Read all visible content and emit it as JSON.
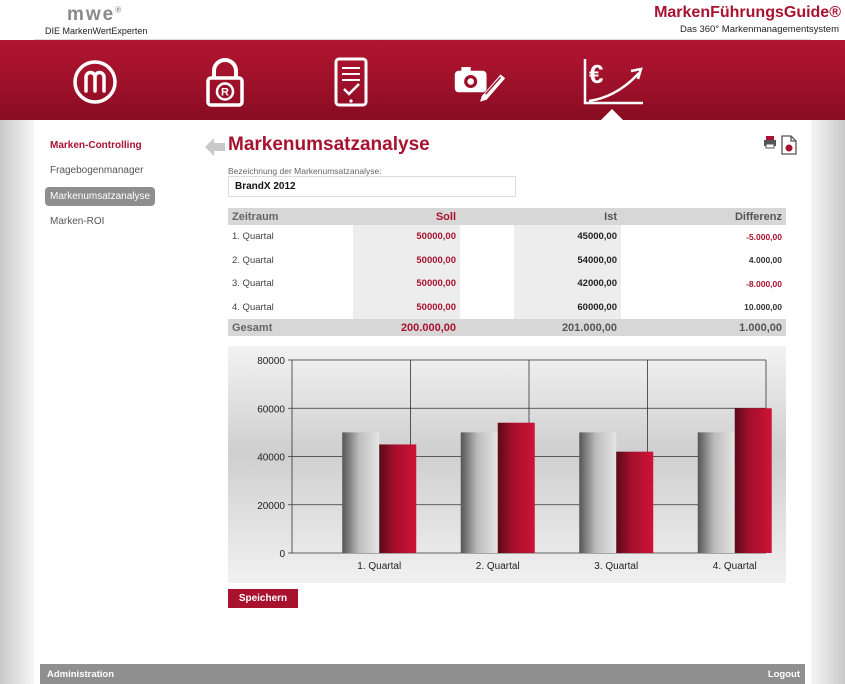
{
  "header": {
    "logo": "mwe",
    "logo_mark": "®",
    "logo_subtitle": "DIE MarkenWertExperten",
    "brand_title": "MarkenFührungsGuide®",
    "brand_subtitle": "Das 360° Markenmanagementsystem",
    "nav_icons": [
      "brand-m-icon",
      "lock-registered-icon",
      "tablet-checklist-icon",
      "camera-pencil-icon",
      "euro-chart-icon"
    ]
  },
  "sidebar": {
    "items": [
      "Marken-Controlling",
      "Fragebogenmanager",
      "Markenumsatzanalyse",
      "Marken-ROI"
    ]
  },
  "page": {
    "title": "Markenumsatzanalyse",
    "field_label": "Bezeichnung der Markenumsatzanalyse:",
    "field_value": "BrandX 2012"
  },
  "table": {
    "headers": [
      "Zeitraum",
      "Soll",
      "Ist",
      "Differenz"
    ],
    "rows": [
      {
        "period": "1. Quartal",
        "soll": "50000,00",
        "ist": "45000,00",
        "diff": "-5.000,00"
      },
      {
        "period": "2. Quartal",
        "soll": "50000,00",
        "ist": "54000,00",
        "diff": "4.000,00"
      },
      {
        "period": "3. Quartal",
        "soll": "50000,00",
        "ist": "42000,00",
        "diff": "-8.000,00"
      },
      {
        "period": "4. Quartal",
        "soll": "50000,00",
        "ist": "60000,00",
        "diff": "10.000,00"
      }
    ],
    "total": {
      "label": "Gesamt",
      "soll": "200.000,00",
      "ist": "201.000,00",
      "diff": "1.000,00"
    }
  },
  "chart_data": {
    "type": "bar",
    "categories": [
      "1. Quartal",
      "2. Quartal",
      "3. Quartal",
      "4. Quartal"
    ],
    "series": [
      {
        "values": [
          50000,
          50000,
          50000,
          50000
        ],
        "color": "#8a8a8a"
      },
      {
        "values": [
          45000,
          54000,
          42000,
          60000
        ],
        "color": "#b01030"
      }
    ],
    "ylim": [
      0,
      80000
    ],
    "yticks": [
      0,
      20000,
      40000,
      60000,
      80000
    ],
    "grid": true
  },
  "buttons": {
    "save": "Speichern"
  },
  "footer": {
    "left": "Administration",
    "right": "Logout"
  },
  "colors": {
    "brand": "#a8122f",
    "band": "#9c1029"
  }
}
